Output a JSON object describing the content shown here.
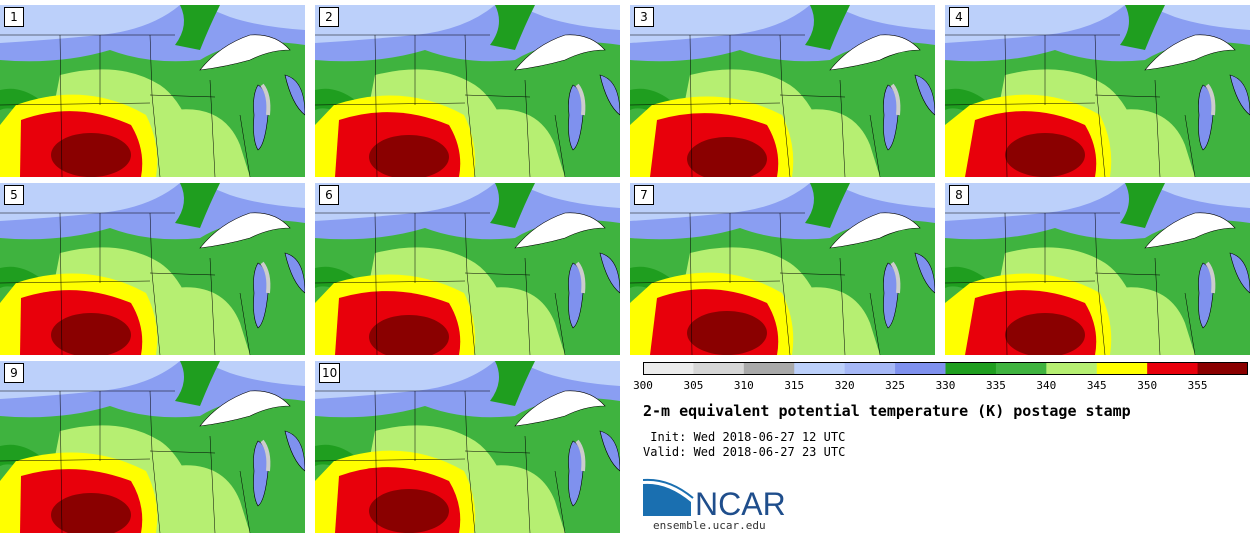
{
  "panels": [
    {
      "label": "1"
    },
    {
      "label": "2"
    },
    {
      "label": "3"
    },
    {
      "label": "4"
    },
    {
      "label": "5"
    },
    {
      "label": "6"
    },
    {
      "label": "7"
    },
    {
      "label": "8"
    },
    {
      "label": "9"
    },
    {
      "label": "10"
    }
  ],
  "colorbar": {
    "ticks": [
      "300",
      "305",
      "310",
      "315",
      "320",
      "325",
      "330",
      "335",
      "340",
      "345",
      "350",
      "355"
    ],
    "colors": [
      "#ececec",
      "#d6d6d6",
      "#a9a9a9",
      "#bcd0fa",
      "#a6b8f6",
      "#7f91ee",
      "#1f9e1f",
      "#3fb33f",
      "#b6ef72",
      "#ffff00",
      "#e8000b",
      "#8a0000"
    ]
  },
  "title": "2-m equivalent potential temperature (K) postage stamp",
  "init": " Init: Wed 2018-06-27 12 UTC",
  "valid": "Valid: Wed 2018-06-27 23 UTC",
  "logo_text": "NCAR",
  "url": "ensemble.ucar.edu",
  "map_colors": {
    "lightblue": "#bcd0fa",
    "midblue": "#8a9ef2",
    "darkgreen": "#1f9e1f",
    "green": "#3fb33f",
    "lightgreen": "#b6ef72",
    "yellow": "#ffff00",
    "red": "#e8000b",
    "darkred": "#8a0000",
    "lake": "#7f91ee",
    "ice": "#ffffff"
  }
}
